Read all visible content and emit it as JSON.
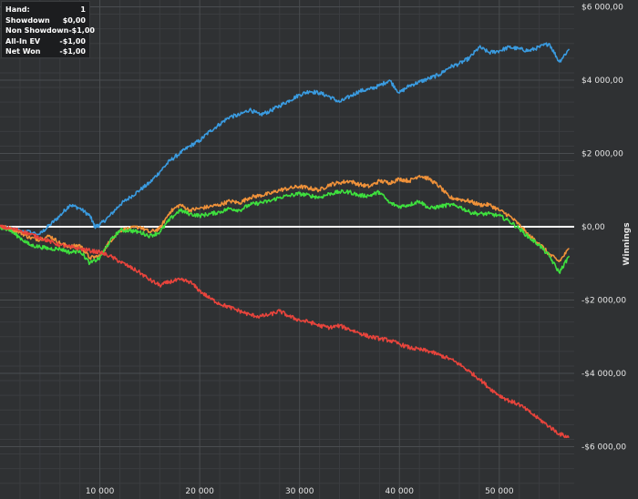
{
  "stats": [
    {
      "label": "Hand:",
      "value": "1"
    },
    {
      "label": "Showdown",
      "value": "$0,00"
    },
    {
      "label": "Non Showdown",
      "value": "-$1,00"
    },
    {
      "label": "All-In EV",
      "value": "-$1,00"
    },
    {
      "label": "Net Won",
      "value": "-$1,00"
    }
  ],
  "chart_data": {
    "type": "line",
    "title": "",
    "xlabel": "",
    "ylabel": "Winnings",
    "xlim": [
      0,
      57500
    ],
    "ylim": [
      -7000,
      6000
    ],
    "x_ticks": [
      10000,
      20000,
      30000,
      40000,
      50000
    ],
    "x_tick_labels": [
      "10 000",
      "20 000",
      "30 000",
      "40 000",
      "50 000"
    ],
    "y_ticks": [
      6000,
      4000,
      2000,
      0,
      -2000,
      -4000,
      -6000
    ],
    "y_tick_labels": [
      "$6 000,00",
      "$4 000,00",
      "$2 000,00",
      "$0,00",
      "-$2 000,00",
      "-$4 000,00",
      "-$6 000,00"
    ],
    "grid": true,
    "zero_line": true,
    "series": [
      {
        "color": "#3a9be0",
        "x": [
          0,
          2000,
          4000,
          5000,
          6000,
          7000,
          8000,
          9000,
          9500,
          10000,
          11000,
          12000,
          13000,
          14000,
          15000,
          16000,
          17000,
          18000,
          19000,
          20000,
          21000,
          22000,
          23000,
          24000,
          25000,
          26000,
          27000,
          28000,
          29000,
          30000,
          31000,
          32000,
          33000,
          34000,
          35000,
          36000,
          37000,
          38000,
          39000,
          40000,
          41000,
          42000,
          43000,
          44000,
          45000,
          46000,
          47000,
          48000,
          49000,
          50000,
          51000,
          52000,
          53000,
          54000,
          55000,
          56000,
          57000
        ],
        "values": [
          0,
          -100,
          -200,
          50,
          300,
          600,
          500,
          300,
          0,
          50,
          300,
          600,
          800,
          1000,
          1200,
          1500,
          1800,
          2000,
          2200,
          2350,
          2600,
          2800,
          3000,
          3050,
          3200,
          3050,
          3150,
          3300,
          3450,
          3600,
          3700,
          3650,
          3550,
          3400,
          3550,
          3700,
          3750,
          3850,
          4000,
          3650,
          3850,
          3950,
          4050,
          4150,
          4350,
          4450,
          4600,
          4900,
          4750,
          4800,
          4900,
          4850,
          4800,
          4900,
          5000,
          4500,
          4850
        ]
      },
      {
        "color": "#f0923a",
        "x": [
          0,
          1000,
          2000,
          3000,
          4000,
          5000,
          6000,
          7000,
          8000,
          9000,
          10000,
          11000,
          12000,
          13000,
          14000,
          15000,
          16000,
          17000,
          18000,
          19000,
          20000,
          21000,
          22000,
          23000,
          24000,
          25000,
          26000,
          27000,
          28000,
          29000,
          30000,
          31000,
          32000,
          33000,
          34000,
          35000,
          36000,
          37000,
          38000,
          39000,
          40000,
          41000,
          42000,
          43000,
          44000,
          45000,
          46000,
          47000,
          48000,
          49000,
          50000,
          51000,
          52000,
          53000,
          54000,
          55000,
          56000,
          57000
        ],
        "values": [
          0,
          -50,
          -150,
          -300,
          -350,
          -250,
          -450,
          -550,
          -500,
          -850,
          -800,
          -400,
          -100,
          -50,
          0,
          -150,
          -50,
          400,
          600,
          450,
          500,
          550,
          600,
          700,
          650,
          800,
          850,
          900,
          1000,
          1050,
          1100,
          1050,
          1000,
          1150,
          1200,
          1250,
          1150,
          1100,
          1250,
          1200,
          1300,
          1250,
          1400,
          1300,
          1100,
          800,
          750,
          700,
          600,
          600,
          450,
          300,
          50,
          -250,
          -450,
          -750,
          -950,
          -600
        ]
      },
      {
        "color": "#3ee03e",
        "x": [
          0,
          1000,
          2000,
          3000,
          4000,
          5000,
          6000,
          7000,
          8000,
          9000,
          10000,
          11000,
          12000,
          13000,
          14000,
          15000,
          16000,
          17000,
          18000,
          19000,
          20000,
          21000,
          22000,
          23000,
          24000,
          25000,
          26000,
          27000,
          28000,
          29000,
          30000,
          31000,
          32000,
          33000,
          34000,
          35000,
          36000,
          37000,
          38000,
          39000,
          40000,
          41000,
          42000,
          43000,
          44000,
          45000,
          46000,
          47000,
          48000,
          49000,
          50000,
          51000,
          52000,
          53000,
          54000,
          55000,
          56000,
          57000
        ],
        "values": [
          0,
          -100,
          -300,
          -500,
          -550,
          -600,
          -600,
          -700,
          -650,
          -1000,
          -850,
          -400,
          -100,
          -100,
          -150,
          -250,
          -150,
          200,
          450,
          350,
          300,
          350,
          400,
          500,
          450,
          600,
          650,
          700,
          800,
          850,
          900,
          850,
          800,
          900,
          950,
          950,
          850,
          850,
          950,
          650,
          550,
          600,
          700,
          500,
          550,
          600,
          550,
          400,
          350,
          350,
          300,
          150,
          -50,
          -300,
          -500,
          -800,
          -1250,
          -800
        ]
      },
      {
        "color": "#e8443c",
        "x": [
          0,
          1000,
          2000,
          3000,
          4000,
          5000,
          6000,
          7000,
          8000,
          9000,
          10000,
          11000,
          12000,
          13000,
          14000,
          15000,
          16000,
          17000,
          18000,
          19000,
          20000,
          21000,
          22000,
          23000,
          24000,
          25000,
          26000,
          27000,
          28000,
          29000,
          30000,
          31000,
          32000,
          33000,
          34000,
          35000,
          36000,
          37000,
          38000,
          39000,
          40000,
          41000,
          42000,
          43000,
          44000,
          45000,
          46000,
          47000,
          48000,
          49000,
          50000,
          51000,
          52000,
          53000,
          54000,
          55000,
          56000,
          57000
        ],
        "values": [
          0,
          -50,
          -100,
          -200,
          -300,
          -400,
          -500,
          -550,
          -600,
          -650,
          -700,
          -800,
          -950,
          -1100,
          -1250,
          -1450,
          -1600,
          -1500,
          -1450,
          -1500,
          -1750,
          -1950,
          -2100,
          -2200,
          -2300,
          -2400,
          -2450,
          -2400,
          -2300,
          -2450,
          -2550,
          -2600,
          -2700,
          -2750,
          -2700,
          -2800,
          -2900,
          -3000,
          -3050,
          -3100,
          -3200,
          -3300,
          -3350,
          -3400,
          -3500,
          -3600,
          -3750,
          -3950,
          -4150,
          -4400,
          -4600,
          -4750,
          -4850,
          -5050,
          -5250,
          -5450,
          -5650,
          -5750
        ]
      }
    ]
  }
}
